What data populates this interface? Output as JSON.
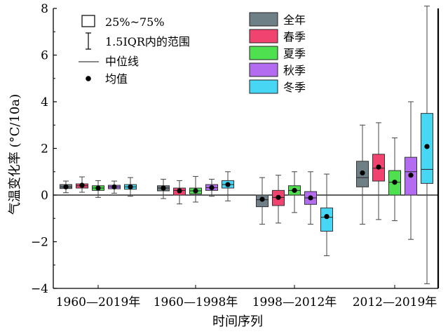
{
  "chart_data": {
    "type": "boxplot",
    "ylabel": "气温变化率 (°C/10a)",
    "xlabel": "时间序列",
    "ylim": [
      -4,
      8
    ],
    "yticks": [
      -4,
      -2,
      0,
      2,
      4,
      6,
      8
    ],
    "grid": false,
    "reference_line_y": 0,
    "groups": [
      "1960—2019年",
      "1960—1998年",
      "1998—2012年",
      "2012—2019年"
    ],
    "series": [
      {
        "name": "全年",
        "color": "#6f7f86"
      },
      {
        "name": "春季",
        "color": "#f0436f"
      },
      {
        "name": "夏季",
        "color": "#4fe04f"
      },
      {
        "name": "秋季",
        "color": "#b36cf0"
      },
      {
        "name": "冬季",
        "color": "#47d6f4"
      }
    ],
    "boxes": [
      [
        {
          "min": 0.1,
          "q1": 0.28,
          "median": 0.35,
          "q3": 0.45,
          "max": 0.6,
          "mean": 0.35
        },
        {
          "min": 0.12,
          "q1": 0.3,
          "median": 0.4,
          "q3": 0.48,
          "max": 0.78,
          "mean": 0.42
        },
        {
          "min": -0.1,
          "q1": 0.2,
          "median": 0.3,
          "q3": 0.4,
          "max": 0.62,
          "mean": 0.3
        },
        {
          "min": 0.08,
          "q1": 0.27,
          "median": 0.35,
          "q3": 0.42,
          "max": 0.6,
          "mean": 0.35
        },
        {
          "min": -0.05,
          "q1": 0.25,
          "median": 0.35,
          "q3": 0.45,
          "max": 0.75,
          "mean": 0.35
        }
      ],
      [
        {
          "min": -0.15,
          "q1": 0.18,
          "median": 0.3,
          "q3": 0.4,
          "max": 0.68,
          "mean": 0.3
        },
        {
          "min": -0.38,
          "q1": 0.0,
          "median": 0.2,
          "q3": 0.3,
          "max": 0.62,
          "mean": 0.18
        },
        {
          "min": -0.3,
          "q1": 0.05,
          "median": 0.18,
          "q3": 0.3,
          "max": 0.8,
          "mean": 0.18
        },
        {
          "min": -0.05,
          "q1": 0.2,
          "median": 0.32,
          "q3": 0.45,
          "max": 0.68,
          "mean": 0.32
        },
        {
          "min": -0.25,
          "q1": 0.3,
          "median": 0.45,
          "q3": 0.62,
          "max": 1.0,
          "mean": 0.45
        }
      ],
      [
        {
          "min": -1.25,
          "q1": -0.5,
          "median": -0.2,
          "q3": 0.0,
          "max": 0.75,
          "mean": -0.18
        },
        {
          "min": -1.2,
          "q1": -0.45,
          "median": -0.1,
          "q3": 0.2,
          "max": 0.85,
          "mean": -0.1
        },
        {
          "min": -0.75,
          "q1": 0.0,
          "median": 0.2,
          "q3": 0.4,
          "max": 1.0,
          "mean": 0.2
        },
        {
          "min": -1.25,
          "q1": -0.4,
          "median": -0.12,
          "q3": 0.15,
          "max": 1.0,
          "mean": -0.12
        },
        {
          "min": -2.6,
          "q1": -1.55,
          "median": -0.95,
          "q3": -0.55,
          "max": 0.9,
          "mean": -0.92
        }
      ],
      [
        {
          "min": -1.25,
          "q1": 0.35,
          "median": 0.75,
          "q3": 1.45,
          "max": 3.0,
          "mean": 0.95
        },
        {
          "min": -1.05,
          "q1": 0.6,
          "median": 1.15,
          "q3": 1.75,
          "max": 3.1,
          "mean": 1.2
        },
        {
          "min": -1.1,
          "q1": 0.0,
          "median": 0.55,
          "q3": 1.05,
          "max": 2.45,
          "mean": 0.55
        },
        {
          "min": -1.9,
          "q1": 0.0,
          "median": 1.0,
          "q3": 1.62,
          "max": 4.0,
          "mean": 0.85
        },
        {
          "min": -3.8,
          "q1": 0.5,
          "median": 1.1,
          "q3": 3.5,
          "max": 8.1,
          "mean": 2.08
        }
      ]
    ]
  },
  "legend_left": [
    {
      "kind": "box",
      "label": "25%~75%"
    },
    {
      "kind": "whisker",
      "label": "1.5IQR内的范围"
    },
    {
      "kind": "line",
      "label": "中位线"
    },
    {
      "kind": "dot",
      "label": "均值"
    }
  ]
}
